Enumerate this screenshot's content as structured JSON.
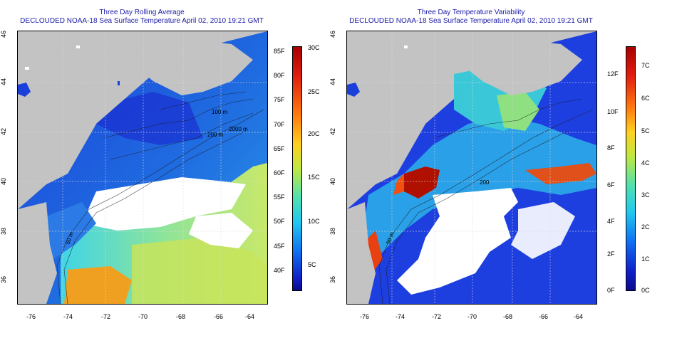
{
  "left_panel": {
    "title": "Three Day Rolling Average",
    "subtitle": "DECLOUDED NOAA-18 Sea Surface Temperature April 02, 2010 19:21 GMT",
    "lon_ticks": [
      "-76",
      "-74",
      "-72",
      "-70",
      "-68",
      "-66",
      "-64"
    ],
    "lat_ticks": [
      "46",
      "44",
      "42",
      "40",
      "38",
      "36"
    ],
    "colorbar_left_labels": [
      "85F",
      "80F",
      "75F",
      "70F",
      "65F",
      "60F",
      "55F",
      "50F",
      "45F",
      "40F"
    ],
    "colorbar_right_labels": [
      "30C",
      "25C",
      "20C",
      "15C",
      "10C",
      "5C"
    ],
    "contour_labels": [
      "100 m",
      "2000 m",
      "200 m",
      "50 m"
    ]
  },
  "right_panel": {
    "title": "Three Day Temperature Variability",
    "subtitle": "DECLOUDED NOAA-18 Sea Surface Temperature April 02, 2010 19:21 GMT",
    "lon_ticks": [
      "-76",
      "-74",
      "-72",
      "-70",
      "-68",
      "-66",
      "-64"
    ],
    "lat_ticks": [
      "46",
      "44",
      "42",
      "40",
      "38",
      "36"
    ],
    "colorbar_left_labels": [
      "12F",
      "10F",
      "8F",
      "6F",
      "4F",
      "2F",
      "0F"
    ],
    "colorbar_right_labels": [
      "7C",
      "6C",
      "5C",
      "4C",
      "3C",
      "2C",
      "1C",
      "0C"
    ],
    "contour_labels": [
      "200",
      "50 m"
    ]
  },
  "colors": {
    "land": "#c3c3c3",
    "title_text": "#1a1aa6",
    "cloud": "#ffffff"
  }
}
